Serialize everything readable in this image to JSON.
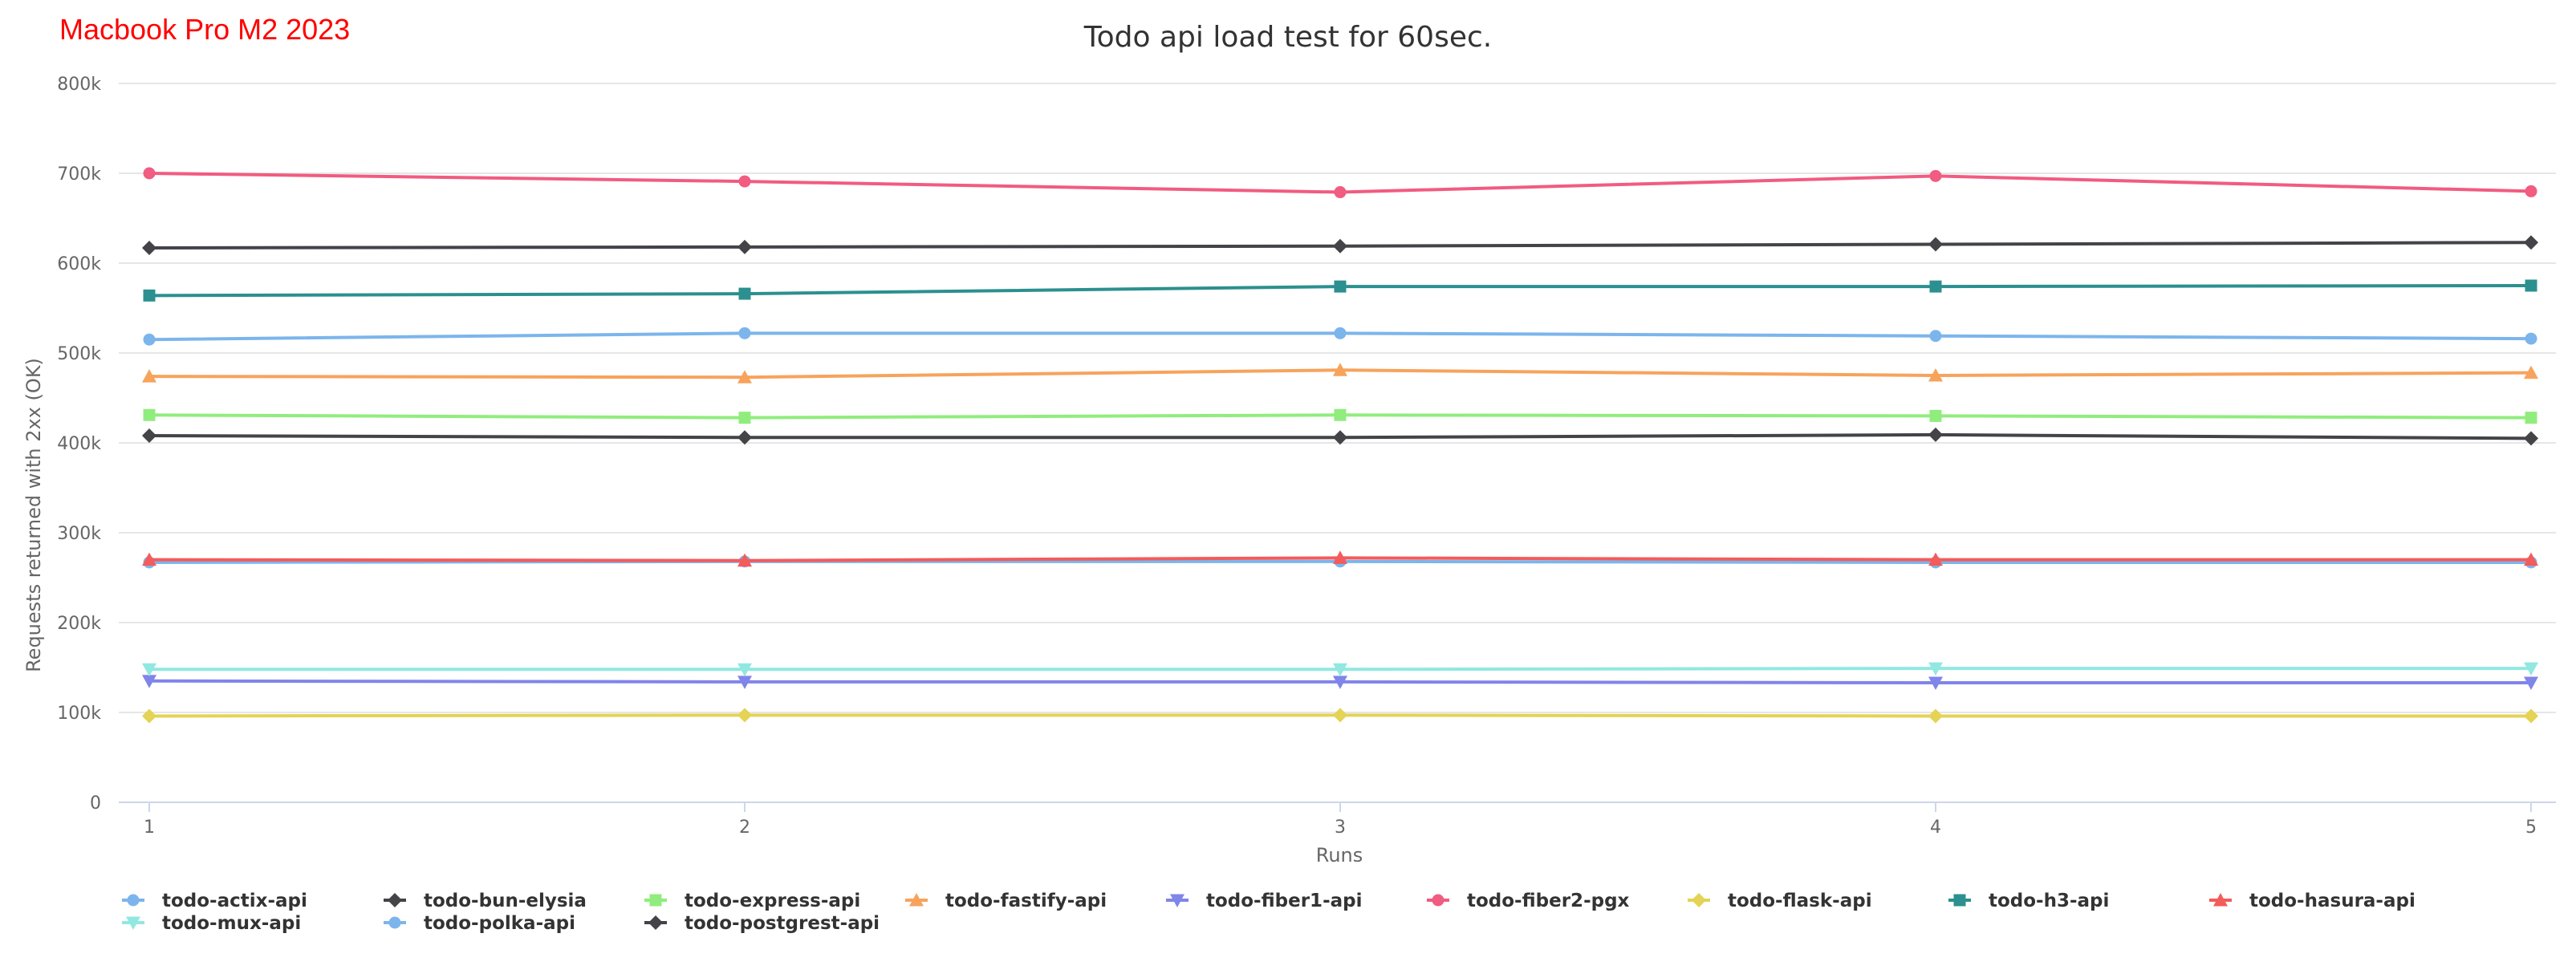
{
  "corner_label": "Macbook Pro M2 2023",
  "chart_data": {
    "type": "line",
    "title": "Todo api load test for 60sec.",
    "xlabel": "Runs",
    "ylabel": "Requests returned with 2xx (OK)",
    "x": [
      1,
      2,
      3,
      4,
      5
    ],
    "x_tick_labels": [
      "1",
      "2",
      "3",
      "4",
      "5"
    ],
    "ylim": [
      0,
      800000
    ],
    "y_ticks": [
      0,
      100000,
      200000,
      300000,
      400000,
      500000,
      600000,
      700000,
      800000
    ],
    "y_tick_labels": [
      "0",
      "100k",
      "200k",
      "300k",
      "400k",
      "500k",
      "600k",
      "700k",
      "800k"
    ],
    "grid": "horizontal",
    "legend_position": "bottom",
    "series": [
      {
        "name": "todo-actix-api",
        "color": "#7cb5ec",
        "marker": "circle",
        "values": [
          267000,
          268000,
          268000,
          267000,
          267000
        ]
      },
      {
        "name": "todo-bun-elysia",
        "color": "#434348",
        "marker": "diamond",
        "values": [
          408000,
          406000,
          406000,
          409000,
          405000
        ]
      },
      {
        "name": "todo-express-api",
        "color": "#90ed7d",
        "marker": "square",
        "values": [
          431000,
          428000,
          431000,
          430000,
          428000
        ]
      },
      {
        "name": "todo-fastify-api",
        "color": "#f7a35c",
        "marker": "triangle",
        "values": [
          474000,
          473000,
          481000,
          475000,
          478000
        ]
      },
      {
        "name": "todo-fiber1-api",
        "color": "#8085e9",
        "marker": "triangle-down",
        "values": [
          135000,
          134000,
          134000,
          133000,
          133000
        ]
      },
      {
        "name": "todo-fiber2-pgx",
        "color": "#f15c80",
        "marker": "circle",
        "values": [
          700000,
          691000,
          679000,
          697000,
          680000
        ]
      },
      {
        "name": "todo-flask-api",
        "color": "#e4d354",
        "marker": "diamond",
        "values": [
          96000,
          97000,
          97000,
          96000,
          96000
        ]
      },
      {
        "name": "todo-h3-api",
        "color": "#2b908f",
        "marker": "square",
        "values": [
          564000,
          566000,
          574000,
          574000,
          575000
        ]
      },
      {
        "name": "todo-hasura-api",
        "color": "#f45b5b",
        "marker": "triangle",
        "values": [
          270000,
          269000,
          272000,
          270000,
          270000
        ]
      },
      {
        "name": "todo-mux-api",
        "color": "#91e8e1",
        "marker": "triangle-down",
        "values": [
          148000,
          148000,
          148000,
          149000,
          149000
        ]
      },
      {
        "name": "todo-polka-api",
        "color": "#7cb5ec",
        "marker": "circle",
        "values": [
          515000,
          522000,
          522000,
          519000,
          516000
        ]
      },
      {
        "name": "todo-postgrest-api",
        "color": "#434348",
        "marker": "diamond",
        "values": [
          617000,
          618000,
          619000,
          621000,
          623000
        ]
      }
    ]
  }
}
